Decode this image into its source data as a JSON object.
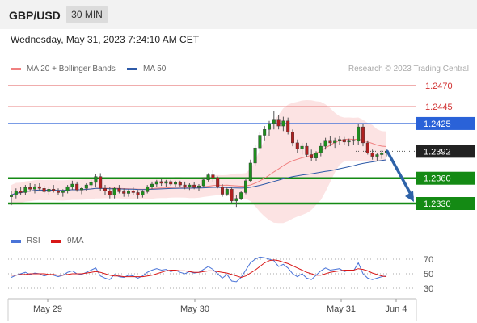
{
  "header": {
    "symbol": "GBP/USD",
    "timeframe": "30 MIN"
  },
  "datetime": "Wednesday, May 31, 2023 7:24:10 AM CET",
  "legend": {
    "ma20_label": "MA 20 + Bollinger Bands",
    "ma20_color": "#f08080",
    "ma50_label": "MA 50",
    "ma50_color": "#2e5aa8"
  },
  "source": "Research © 2023 Trading Central",
  "rsi_legend": {
    "rsi_label": "RSI",
    "rsi_color": "#4a74d8",
    "ma9_label": "9MA",
    "ma9_color": "#d81818"
  },
  "chart_data": {
    "type": "candlestick",
    "x_ticks": [
      "May 29",
      "May 30",
      "May 31",
      "Jun 4"
    ],
    "y_range": [
      1.2315,
      1.2485
    ],
    "levels": [
      {
        "value": 1.247,
        "label": "1.2470",
        "kind": "resistance",
        "color": "#e05a5a"
      },
      {
        "value": 1.2445,
        "label": "1.2445",
        "kind": "resistance",
        "color": "#e05a5a"
      },
      {
        "value": 1.2425,
        "label": "1.2425",
        "kind": "pivot",
        "color": "#2a62d8"
      },
      {
        "value": 1.2392,
        "label": "1.2392",
        "kind": "last",
        "color": "#222222"
      },
      {
        "value": 1.236,
        "label": "1.2360",
        "kind": "support",
        "color": "#148a14"
      },
      {
        "value": 1.233,
        "label": "1.2330",
        "kind": "support",
        "color": "#148a14"
      }
    ],
    "forecast_arrow": {
      "from": 1.2392,
      "to": 1.233,
      "color": "#2e62a8"
    },
    "candles": [
      [
        1.2338,
        1.2345,
        1.2328,
        1.234
      ],
      [
        1.234,
        1.2348,
        1.2336,
        1.2345
      ],
      [
        1.2345,
        1.235,
        1.234,
        1.2343
      ],
      [
        1.2343,
        1.2352,
        1.234,
        1.2349
      ],
      [
        1.2349,
        1.2354,
        1.2344,
        1.2347
      ],
      [
        1.2347,
        1.2353,
        1.2342,
        1.235
      ],
      [
        1.235,
        1.2354,
        1.2345,
        1.2348
      ],
      [
        1.2348,
        1.2351,
        1.2342,
        1.2344
      ],
      [
        1.2344,
        1.2349,
        1.234,
        1.2347
      ],
      [
        1.2347,
        1.2352,
        1.2343,
        1.2345
      ],
      [
        1.2345,
        1.2348,
        1.234,
        1.2343
      ],
      [
        1.2343,
        1.2347,
        1.2338,
        1.2345
      ],
      [
        1.2345,
        1.2352,
        1.2342,
        1.235
      ],
      [
        1.235,
        1.2357,
        1.2346,
        1.2353
      ],
      [
        1.2353,
        1.2356,
        1.2344,
        1.2346
      ],
      [
        1.2346,
        1.235,
        1.2341,
        1.2348
      ],
      [
        1.2348,
        1.2354,
        1.2345,
        1.2352
      ],
      [
        1.2352,
        1.2358,
        1.2348,
        1.2355
      ],
      [
        1.2355,
        1.2365,
        1.235,
        1.2362
      ],
      [
        1.2362,
        1.2366,
        1.2345,
        1.2348
      ],
      [
        1.2348,
        1.2352,
        1.234,
        1.2345
      ],
      [
        1.2345,
        1.235,
        1.2336,
        1.234
      ],
      [
        1.234,
        1.235,
        1.2336,
        1.2348
      ],
      [
        1.2348,
        1.2352,
        1.2342,
        1.2344
      ],
      [
        1.2344,
        1.2348,
        1.2338,
        1.2342
      ],
      [
        1.2342,
        1.2347,
        1.2338,
        1.2345
      ],
      [
        1.2345,
        1.2349,
        1.234,
        1.2343
      ],
      [
        1.2343,
        1.2346,
        1.2336,
        1.234
      ],
      [
        1.234,
        1.2346,
        1.2337,
        1.2344
      ],
      [
        1.2344,
        1.2352,
        1.2342,
        1.235
      ],
      [
        1.235,
        1.2356,
        1.2347,
        1.2353
      ],
      [
        1.2353,
        1.2358,
        1.235,
        1.2356
      ],
      [
        1.2356,
        1.2359,
        1.2351,
        1.2354
      ],
      [
        1.2354,
        1.2358,
        1.235,
        1.2356
      ],
      [
        1.2356,
        1.2358,
        1.2351,
        1.2353
      ],
      [
        1.2353,
        1.2357,
        1.2349,
        1.2355
      ],
      [
        1.2355,
        1.2357,
        1.235,
        1.2352
      ],
      [
        1.2352,
        1.2356,
        1.2347,
        1.235
      ],
      [
        1.235,
        1.2354,
        1.2346,
        1.2352
      ],
      [
        1.2352,
        1.2355,
        1.2347,
        1.2349
      ],
      [
        1.2349,
        1.2353,
        1.2345,
        1.2351
      ],
      [
        1.2351,
        1.236,
        1.2349,
        1.2358
      ],
      [
        1.2358,
        1.2366,
        1.2356,
        1.2364
      ],
      [
        1.2364,
        1.237,
        1.2356,
        1.236
      ],
      [
        1.236,
        1.2362,
        1.2348,
        1.235
      ],
      [
        1.235,
        1.2353,
        1.2338,
        1.2341
      ],
      [
        1.2341,
        1.235,
        1.2339,
        1.2347
      ],
      [
        1.2347,
        1.235,
        1.233,
        1.2333
      ],
      [
        1.2333,
        1.234,
        1.2326,
        1.2336
      ],
      [
        1.2336,
        1.2345,
        1.2334,
        1.2343
      ],
      [
        1.2343,
        1.236,
        1.2341,
        1.2357
      ],
      [
        1.2357,
        1.2382,
        1.2355,
        1.2378
      ],
      [
        1.2378,
        1.24,
        1.2374,
        1.2396
      ],
      [
        1.2396,
        1.2415,
        1.2392,
        1.2411
      ],
      [
        1.2411,
        1.2422,
        1.2405,
        1.2418
      ],
      [
        1.2418,
        1.2428,
        1.241,
        1.2425
      ],
      [
        1.2425,
        1.244,
        1.2418,
        1.243
      ],
      [
        1.243,
        1.2435,
        1.2418,
        1.2422
      ],
      [
        1.2422,
        1.2433,
        1.2416,
        1.2428
      ],
      [
        1.2428,
        1.2432,
        1.2412,
        1.2415
      ],
      [
        1.2415,
        1.2418,
        1.2398,
        1.2402
      ],
      [
        1.2402,
        1.2406,
        1.239,
        1.2395
      ],
      [
        1.2395,
        1.2402,
        1.2388,
        1.2398
      ],
      [
        1.2398,
        1.2402,
        1.2385,
        1.2388
      ],
      [
        1.2388,
        1.2394,
        1.238,
        1.2384
      ],
      [
        1.2384,
        1.2392,
        1.238,
        1.239
      ],
      [
        1.239,
        1.2402,
        1.2386,
        1.2398
      ],
      [
        1.2398,
        1.2408,
        1.2394,
        1.2405
      ],
      [
        1.2405,
        1.241,
        1.2398,
        1.2402
      ],
      [
        1.2402,
        1.2408,
        1.2396,
        1.2405
      ],
      [
        1.2405,
        1.241,
        1.24,
        1.2406
      ],
      [
        1.2406,
        1.2409,
        1.24,
        1.2403
      ],
      [
        1.2403,
        1.2407,
        1.2398,
        1.2405
      ],
      [
        1.2405,
        1.241,
        1.24,
        1.2404
      ],
      [
        1.2404,
        1.2425,
        1.24,
        1.2421
      ],
      [
        1.2421,
        1.2424,
        1.2398,
        1.2402
      ],
      [
        1.2402,
        1.2405,
        1.2388,
        1.239
      ],
      [
        1.239,
        1.2394,
        1.2382,
        1.2386
      ],
      [
        1.2386,
        1.239,
        1.238,
        1.2388
      ],
      [
        1.2388,
        1.2393,
        1.2383,
        1.239
      ],
      [
        1.239,
        1.2395,
        1.2386,
        1.2392
      ]
    ],
    "rsi": {
      "levels": [
        70,
        50,
        30
      ],
      "range": [
        20,
        80
      ],
      "rsi_values": [
        45,
        48,
        50,
        52,
        49,
        51,
        50,
        47,
        49,
        48,
        46,
        48,
        52,
        54,
        50,
        49,
        52,
        55,
        58,
        47,
        44,
        42,
        49,
        46,
        45,
        48,
        47,
        44,
        47,
        52,
        55,
        57,
        55,
        56,
        53,
        55,
        52,
        50,
        53,
        51,
        52,
        56,
        60,
        56,
        50,
        44,
        49,
        40,
        39,
        45,
        55,
        65,
        70,
        73,
        72,
        70,
        68,
        60,
        63,
        58,
        50,
        46,
        50,
        44,
        42,
        48,
        54,
        58,
        55,
        56,
        57,
        53,
        55,
        54,
        65,
        50,
        44,
        42,
        44,
        46,
        47
      ],
      "ma9_values": [
        48,
        48,
        49,
        49,
        50,
        50,
        50,
        50,
        49,
        49,
        48,
        48,
        49,
        50,
        50,
        50,
        51,
        52,
        53,
        52,
        50,
        48,
        47,
        47,
        46,
        46,
        46,
        46,
        46,
        47,
        48,
        50,
        52,
        54,
        55,
        55,
        54,
        54,
        53,
        52,
        52,
        53,
        54,
        54,
        53,
        52,
        51,
        49,
        47,
        45,
        47,
        51,
        55,
        60,
        65,
        68,
        69,
        68,
        66,
        64,
        61,
        58,
        55,
        52,
        50,
        48,
        48,
        50,
        52,
        53,
        54,
        55,
        55,
        55,
        57,
        56,
        54,
        51,
        49,
        47,
        46
      ]
    }
  }
}
